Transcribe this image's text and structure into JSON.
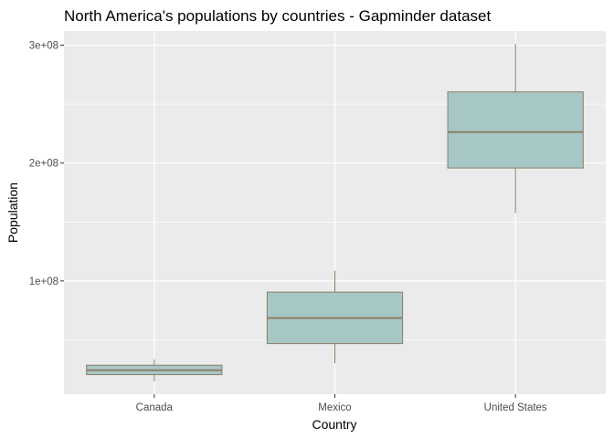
{
  "chart_data": {
    "type": "boxplot",
    "title": "North America's populations by countries - Gapminder dataset",
    "xlabel": "Country",
    "ylabel": "Population",
    "categories": [
      "Canada",
      "Mexico",
      "United States"
    ],
    "boxes": [
      {
        "category": "Canada",
        "min": 14800000,
        "q1": 20500000,
        "median": 24200000,
        "q3": 28500000,
        "max": 33400000
      },
      {
        "category": "Mexico",
        "min": 30100000,
        "q1": 46800000,
        "median": 68500000,
        "q3": 90500000,
        "max": 108700000
      },
      {
        "category": "United States",
        "min": 157600000,
        "q1": 195800000,
        "median": 226300000,
        "q3": 260400000,
        "max": 301100000
      }
    ],
    "yticks": [
      100000000,
      200000000,
      300000000
    ],
    "ytick_labels": [
      "1e+08",
      "2e+08",
      "3e+08"
    ],
    "ylim": [
      3900000,
      312000000
    ],
    "grid": true,
    "colors": {
      "panel": "#EBEBEB",
      "grid": "#FFFFFF",
      "box_fill": "#A7C7C7",
      "box_stroke": "#8B7E66",
      "tick": "#333333"
    }
  }
}
